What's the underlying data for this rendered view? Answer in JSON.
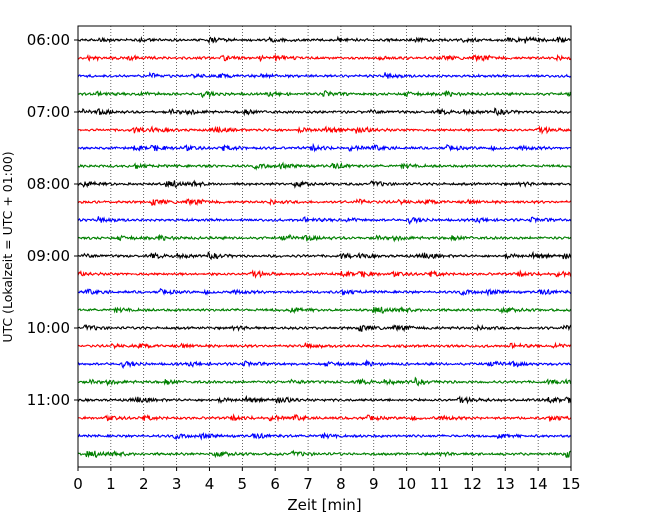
{
  "chart_data": {
    "type": "line",
    "subtype": "helicorder",
    "xlabel": "Zeit  [min]",
    "ylabel": "UTC (Lokalzeit = UTC + 01:00)",
    "xlim": [
      0,
      15
    ],
    "x_ticks": [
      0,
      1,
      2,
      3,
      4,
      5,
      6,
      7,
      8,
      9,
      10,
      11,
      12,
      13,
      14,
      15
    ],
    "x_tick_labels": [
      "0",
      "1",
      "2",
      "3",
      "4",
      "5",
      "6",
      "7",
      "8",
      "9",
      "10",
      "11",
      "12",
      "13",
      "14",
      "15"
    ],
    "vertical_grid": true,
    "trace_interval_minutes": 15,
    "y_ticks": [
      {
        "label": "06:00",
        "trace_index": 0
      },
      {
        "label": "07:00",
        "trace_index": 4
      },
      {
        "label": "08:00",
        "trace_index": 8
      },
      {
        "label": "09:00",
        "trace_index": 12
      },
      {
        "label": "10:00",
        "trace_index": 16
      },
      {
        "label": "11:00",
        "trace_index": 20
      }
    ],
    "trace_count": 24,
    "trace_colors": [
      "#000000",
      "#ff0000",
      "#0000ff",
      "#008000"
    ],
    "signal_description_level": "low-amplitude background noise"
  }
}
